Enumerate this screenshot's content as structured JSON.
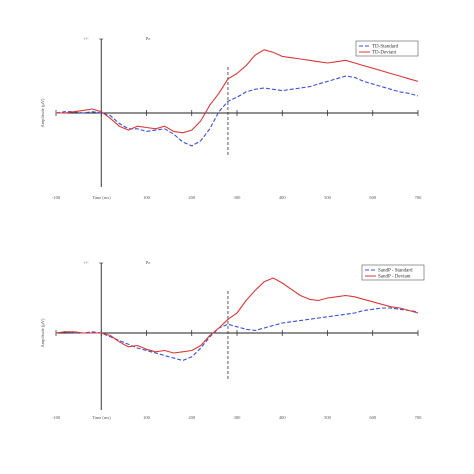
{
  "colors": {
    "standard": "#3a4fd6",
    "deviant": "#d63a3a",
    "axis": "#222222",
    "tick_text": "#555555"
  },
  "chart_data": [
    {
      "type": "line",
      "panel_label": "Pz",
      "axis_mark": "+/-",
      "xlabel": "Time (ms)",
      "ylabel": "Amplitude (μV)",
      "x_ticks": [
        "-100",
        "Time (ms)",
        "100",
        "200",
        "300",
        "400",
        "500",
        "600",
        "700"
      ],
      "marker_x": 280,
      "xlim": [
        -100,
        700
      ],
      "ylim": [
        -6,
        6
      ],
      "grid": false,
      "legend_position": "top-right",
      "series": [
        {
          "name": "TD-Standard",
          "color": "#3a4fd6",
          "dash": "4 2",
          "x": [
            -100,
            -80,
            -60,
            -40,
            -20,
            0,
            20,
            40,
            60,
            80,
            100,
            120,
            140,
            160,
            180,
            200,
            220,
            240,
            260,
            280,
            300,
            320,
            340,
            360,
            380,
            400,
            420,
            440,
            460,
            480,
            500,
            520,
            540,
            560,
            580,
            600,
            620,
            640,
            660,
            680,
            700
          ],
          "y": [
            0,
            0.1,
            0.1,
            0,
            0.1,
            0,
            -0.2,
            -0.8,
            -1.2,
            -1.2,
            -1.4,
            -1.3,
            -1.2,
            -1.6,
            -2.2,
            -2.5,
            -2.1,
            -1.2,
            0.1,
            0.9,
            1.2,
            1.6,
            1.8,
            1.9,
            1.8,
            1.7,
            1.8,
            1.9,
            2.0,
            2.2,
            2.4,
            2.6,
            2.8,
            2.7,
            2.4,
            2.2,
            2.0,
            1.8,
            1.6,
            1.5,
            1.3
          ]
        },
        {
          "name": "TD-Deviant",
          "color": "#d63a3a",
          "dash": "",
          "x": [
            -100,
            -80,
            -60,
            -40,
            -20,
            0,
            20,
            40,
            60,
            80,
            100,
            120,
            140,
            160,
            180,
            200,
            220,
            240,
            260,
            280,
            300,
            320,
            340,
            360,
            380,
            400,
            420,
            440,
            460,
            480,
            500,
            520,
            540,
            560,
            580,
            600,
            620,
            640,
            660,
            680,
            700
          ],
          "y": [
            0,
            0,
            0.1,
            0.2,
            0.3,
            0.1,
            -0.4,
            -1.0,
            -1.3,
            -1.0,
            -1.1,
            -1.2,
            -1.0,
            -1.4,
            -1.5,
            -1.3,
            -0.6,
            0.6,
            1.5,
            2.6,
            3.0,
            3.6,
            4.4,
            4.8,
            4.6,
            4.3,
            4.2,
            4.1,
            4.0,
            3.9,
            3.8,
            3.9,
            4.0,
            3.8,
            3.6,
            3.4,
            3.2,
            3.0,
            2.8,
            2.6,
            2.4
          ]
        }
      ]
    },
    {
      "type": "line",
      "panel_label": "Pz",
      "axis_mark": "+/-",
      "xlabel": "Time (ms)",
      "ylabel": "Amplitude (μV)",
      "x_ticks": [
        "-100",
        "Time (ms)",
        "100",
        "200",
        "300",
        "400",
        "500",
        "600",
        "700"
      ],
      "marker_x": 280,
      "xlim": [
        -100,
        700
      ],
      "ylim": [
        -6,
        6
      ],
      "grid": false,
      "legend_position": "top-right",
      "series": [
        {
          "name": "SandP - Standard",
          "color": "#3a4fd6",
          "dash": "4 2",
          "x": [
            -100,
            -80,
            -60,
            -40,
            -20,
            0,
            20,
            40,
            60,
            80,
            100,
            120,
            140,
            160,
            180,
            200,
            220,
            240,
            260,
            280,
            300,
            320,
            340,
            360,
            380,
            400,
            420,
            440,
            460,
            480,
            500,
            520,
            540,
            560,
            580,
            600,
            620,
            640,
            660,
            680,
            700
          ],
          "y": [
            0,
            0.1,
            0,
            0,
            0.1,
            0,
            -0.3,
            -0.6,
            -0.9,
            -1.2,
            -1.4,
            -1.6,
            -1.8,
            -2.0,
            -2.2,
            -1.9,
            -1.2,
            -0.3,
            0.4,
            0.7,
            0.5,
            0.3,
            0.2,
            0.4,
            0.6,
            0.8,
            0.9,
            1.0,
            1.1,
            1.2,
            1.3,
            1.4,
            1.5,
            1.6,
            1.8,
            1.9,
            2.0,
            2.0,
            1.9,
            1.8,
            1.7
          ]
        },
        {
          "name": "SandP - Deviant",
          "color": "#d63a3a",
          "dash": "",
          "x": [
            -100,
            -80,
            -60,
            -40,
            -20,
            0,
            20,
            40,
            60,
            80,
            100,
            120,
            140,
            160,
            180,
            200,
            220,
            240,
            260,
            280,
            300,
            320,
            340,
            360,
            380,
            400,
            420,
            440,
            460,
            480,
            500,
            520,
            540,
            560,
            580,
            600,
            620,
            640,
            660,
            680,
            700
          ],
          "y": [
            0,
            0.1,
            0.1,
            0,
            0,
            0,
            -0.2,
            -0.7,
            -1.1,
            -1.0,
            -1.3,
            -1.5,
            -1.4,
            -1.6,
            -1.5,
            -1.4,
            -1.0,
            -0.2,
            0.4,
            1.1,
            1.6,
            2.6,
            3.4,
            4.1,
            4.4,
            4.0,
            3.5,
            3.0,
            2.7,
            2.6,
            2.8,
            2.9,
            3.0,
            2.9,
            2.7,
            2.5,
            2.3,
            2.1,
            2.0,
            1.8,
            1.6
          ]
        }
      ]
    }
  ]
}
